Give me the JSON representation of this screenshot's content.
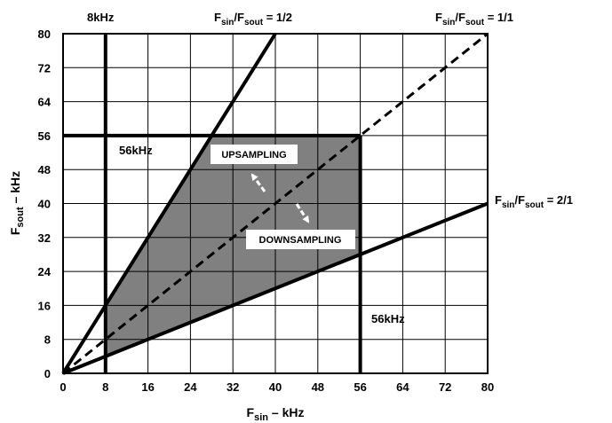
{
  "chart_data": {
    "type": "line",
    "xlabel": {
      "main": "F",
      "sub": "sin",
      "rest": " – kHz"
    },
    "ylabel": {
      "main": "F",
      "sub": "sout",
      "rest": " – kHz"
    },
    "xlim": [
      0,
      80
    ],
    "ylim": [
      0,
      80
    ],
    "grid": true,
    "x_ticks": [
      "0",
      "8",
      "16",
      "24",
      "32",
      "40",
      "48",
      "56",
      "64",
      "72",
      "80"
    ],
    "y_ticks": [
      "0",
      "8",
      "16",
      "24",
      "32",
      "40",
      "48",
      "56",
      "64",
      "72",
      "80"
    ],
    "lines": [
      {
        "id": "ratio-half",
        "points": [
          [
            0,
            0
          ],
          [
            40,
            80
          ]
        ],
        "style": "solid"
      },
      {
        "id": "ratio-one",
        "points": [
          [
            0,
            0
          ],
          [
            80,
            80
          ]
        ],
        "style": "dashed"
      },
      {
        "id": "ratio-two",
        "points": [
          [
            0,
            0
          ],
          [
            80,
            40
          ]
        ],
        "style": "solid"
      },
      {
        "id": "limit-8khz",
        "points": [
          [
            8,
            0
          ],
          [
            8,
            80
          ]
        ],
        "style": "solid"
      },
      {
        "id": "limit-56khz-h",
        "points": [
          [
            0,
            56
          ],
          [
            56,
            56
          ]
        ],
        "style": "solid"
      },
      {
        "id": "limit-56khz-v",
        "points": [
          [
            56,
            0
          ],
          [
            56,
            56
          ]
        ],
        "style": "solid"
      }
    ],
    "region": {
      "fill": "#808080",
      "points": [
        [
          8,
          4
        ],
        [
          8,
          16
        ],
        [
          28,
          56
        ],
        [
          56,
          56
        ],
        [
          56,
          28
        ]
      ]
    },
    "annotations": {
      "top_8khz": "8kHz",
      "ratio_half": {
        "main_a": "F",
        "sub_a": "sin",
        "main_b": "/F",
        "sub_b": "sout",
        "rest": " = 1/2"
      },
      "ratio_one": {
        "main_a": "F",
        "sub_a": "sin",
        "main_b": "/F",
        "sub_b": "sout",
        "rest": " = 1/1"
      },
      "ratio_two": {
        "main_a": "F",
        "sub_a": "sin",
        "main_b": "/F",
        "sub_b": "sout",
        "rest": " = 2/1"
      },
      "label_56khz_h": "56kHz",
      "label_56khz_v": "56kHz",
      "upsampling": "UPSAMPLING",
      "downsampling": "DOWNSAMPLING"
    }
  }
}
